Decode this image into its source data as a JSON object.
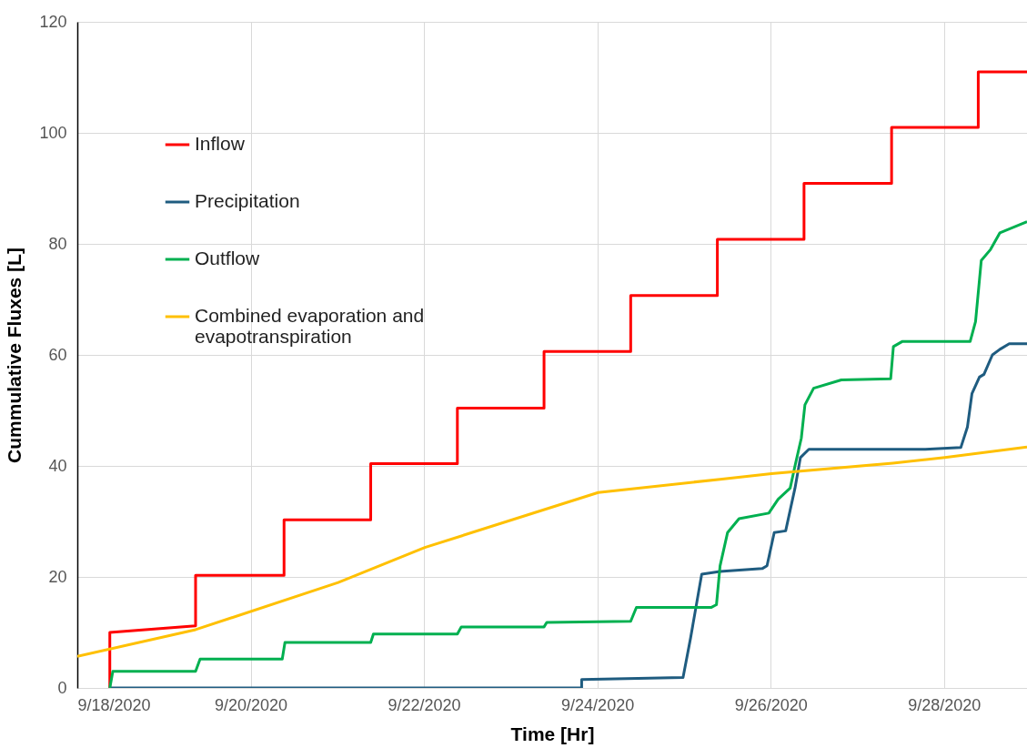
{
  "chart_data": {
    "type": "line",
    "xlabel": "Time [Hr]",
    "ylabel": "Cummulative Fluxes [L]",
    "xlim": [
      "2020-09-18",
      "2020-09-28T23:00"
    ],
    "xticks": [
      {
        "value": "2020-09-18",
        "label": "9/18/2020"
      },
      {
        "value": "2020-09-20",
        "label": "9/20/2020"
      },
      {
        "value": "2020-09-22",
        "label": "9/22/2020"
      },
      {
        "value": "2020-09-24",
        "label": "9/24/2020"
      },
      {
        "value": "2020-09-26",
        "label": "9/26/2020"
      },
      {
        "value": "2020-09-28",
        "label": "9/28/2020"
      }
    ],
    "ylim": [
      0,
      120
    ],
    "yticks": [
      0,
      20,
      40,
      60,
      80,
      100,
      120
    ],
    "grid": true,
    "legend": "top left",
    "marker": "none",
    "line_style": "solid",
    "series": [
      {
        "name": "Inflow",
        "color": "#ff0000",
        "x": [
          "2020-09-18T09:00",
          "2020-09-18T09:00",
          "2020-09-19T08:45",
          "2020-09-19T08:45",
          "2020-09-20T09:15",
          "2020-09-20T09:15",
          "2020-09-21T09:15",
          "2020-09-21T09:15",
          "2020-09-22T09:15",
          "2020-09-22T09:15",
          "2020-09-23T09:15",
          "2020-09-23T09:15",
          "2020-09-24T09:15",
          "2020-09-24T09:15",
          "2020-09-25T09:15",
          "2020-09-25T09:15",
          "2020-09-26T09:15",
          "2020-09-26T09:15",
          "2020-09-27T09:30",
          "2020-09-27T09:30",
          "2020-09-28T09:30",
          "2020-09-28T09:30",
          "2020-09-28T23:00"
        ],
        "values": [
          0,
          10,
          11.2,
          20.3,
          20.3,
          30.3,
          30.3,
          40.4,
          40.4,
          50.4,
          50.4,
          60.6,
          60.6,
          70.7,
          70.7,
          80.8,
          80.8,
          90.9,
          90.9,
          101,
          101,
          111,
          111
        ]
      },
      {
        "name": "Precipitation",
        "color": "#1f5c80",
        "x": [
          "2020-09-18T09:00",
          "2020-09-23T19:40",
          "2020-09-23T19:40",
          "2020-09-24T23:45",
          "2020-09-25T01:50",
          "2020-09-25T04:55",
          "2020-09-25T10:00",
          "2020-09-25T21:40",
          "2020-09-25T23:00",
          "2020-09-26T01:00",
          "2020-09-26T04:10",
          "2020-09-26T06:45",
          "2020-09-26T08:15",
          "2020-09-26T10:35",
          "2020-09-27T18:50",
          "2020-09-28T04:40",
          "2020-09-28T06:30",
          "2020-09-28T07:45",
          "2020-09-28T09:50",
          "2020-09-28T11:05",
          "2020-09-28T13:25",
          "2020-09-28T15:30",
          "2020-09-28T18:05",
          "2020-09-28T23:00"
        ],
        "values": [
          0,
          0,
          1.5,
          1.9,
          9,
          20.5,
          21,
          21.5,
          22,
          28,
          28.3,
          36,
          41.5,
          43,
          43,
          43.3,
          47,
          53,
          56,
          56.5,
          60,
          61,
          62,
          62
        ]
      },
      {
        "name": "Outflow",
        "color": "#00b050",
        "x": [
          "2020-09-18T09:00",
          "2020-09-18T09:50",
          "2020-09-19T08:45",
          "2020-09-19T10:00",
          "2020-09-20T08:45",
          "2020-09-20T09:30",
          "2020-09-21T09:15",
          "2020-09-21T10:00",
          "2020-09-22T09:15",
          "2020-09-22T10:20",
          "2020-09-23T09:15",
          "2020-09-23T10:00",
          "2020-09-24T09:15",
          "2020-09-24T10:50",
          "2020-09-25T07:30",
          "2020-09-25T09:00",
          "2020-09-25T10:00",
          "2020-09-25T12:05",
          "2020-09-25T15:15",
          "2020-09-25T23:30",
          "2020-09-26T02:05",
          "2020-09-26T05:25",
          "2020-09-26T06:45",
          "2020-09-26T08:30",
          "2020-09-26T09:30",
          "2020-09-26T11:55",
          "2020-09-26T19:35",
          "2020-09-27T09:15",
          "2020-09-27T10:00",
          "2020-09-27T12:25",
          "2020-09-28T07:15",
          "2020-09-28T08:45",
          "2020-09-28T10:20",
          "2020-09-28T12:55",
          "2020-09-28T15:30",
          "2020-09-28T23:00"
        ],
        "values": [
          0,
          3,
          3,
          5.2,
          5.2,
          8.2,
          8.2,
          9.7,
          9.7,
          11,
          11,
          11.8,
          12,
          14.5,
          14.5,
          15,
          22,
          28,
          30.5,
          31.5,
          34,
          36,
          40,
          45,
          51,
          54,
          55.5,
          55.7,
          61.5,
          62.4,
          62.4,
          66,
          77,
          79,
          82,
          84
        ]
      },
      {
        "name": "Combined evaporation and\nevapotranspiration",
        "color": "#ffc000",
        "x": [
          "2020-09-18T00:00",
          "2020-09-19T08:45",
          "2020-09-21T00:15",
          "2020-09-22T00:15",
          "2020-09-24T00:15",
          "2020-09-25T10:00",
          "2020-09-26T00:15",
          "2020-09-27T09:50",
          "2020-09-28T00:15",
          "2020-09-28T23:00"
        ],
        "values": [
          5.7,
          10.5,
          19,
          25.3,
          35.2,
          37.6,
          38.6,
          40.5,
          41.5,
          43.4
        ]
      }
    ]
  }
}
